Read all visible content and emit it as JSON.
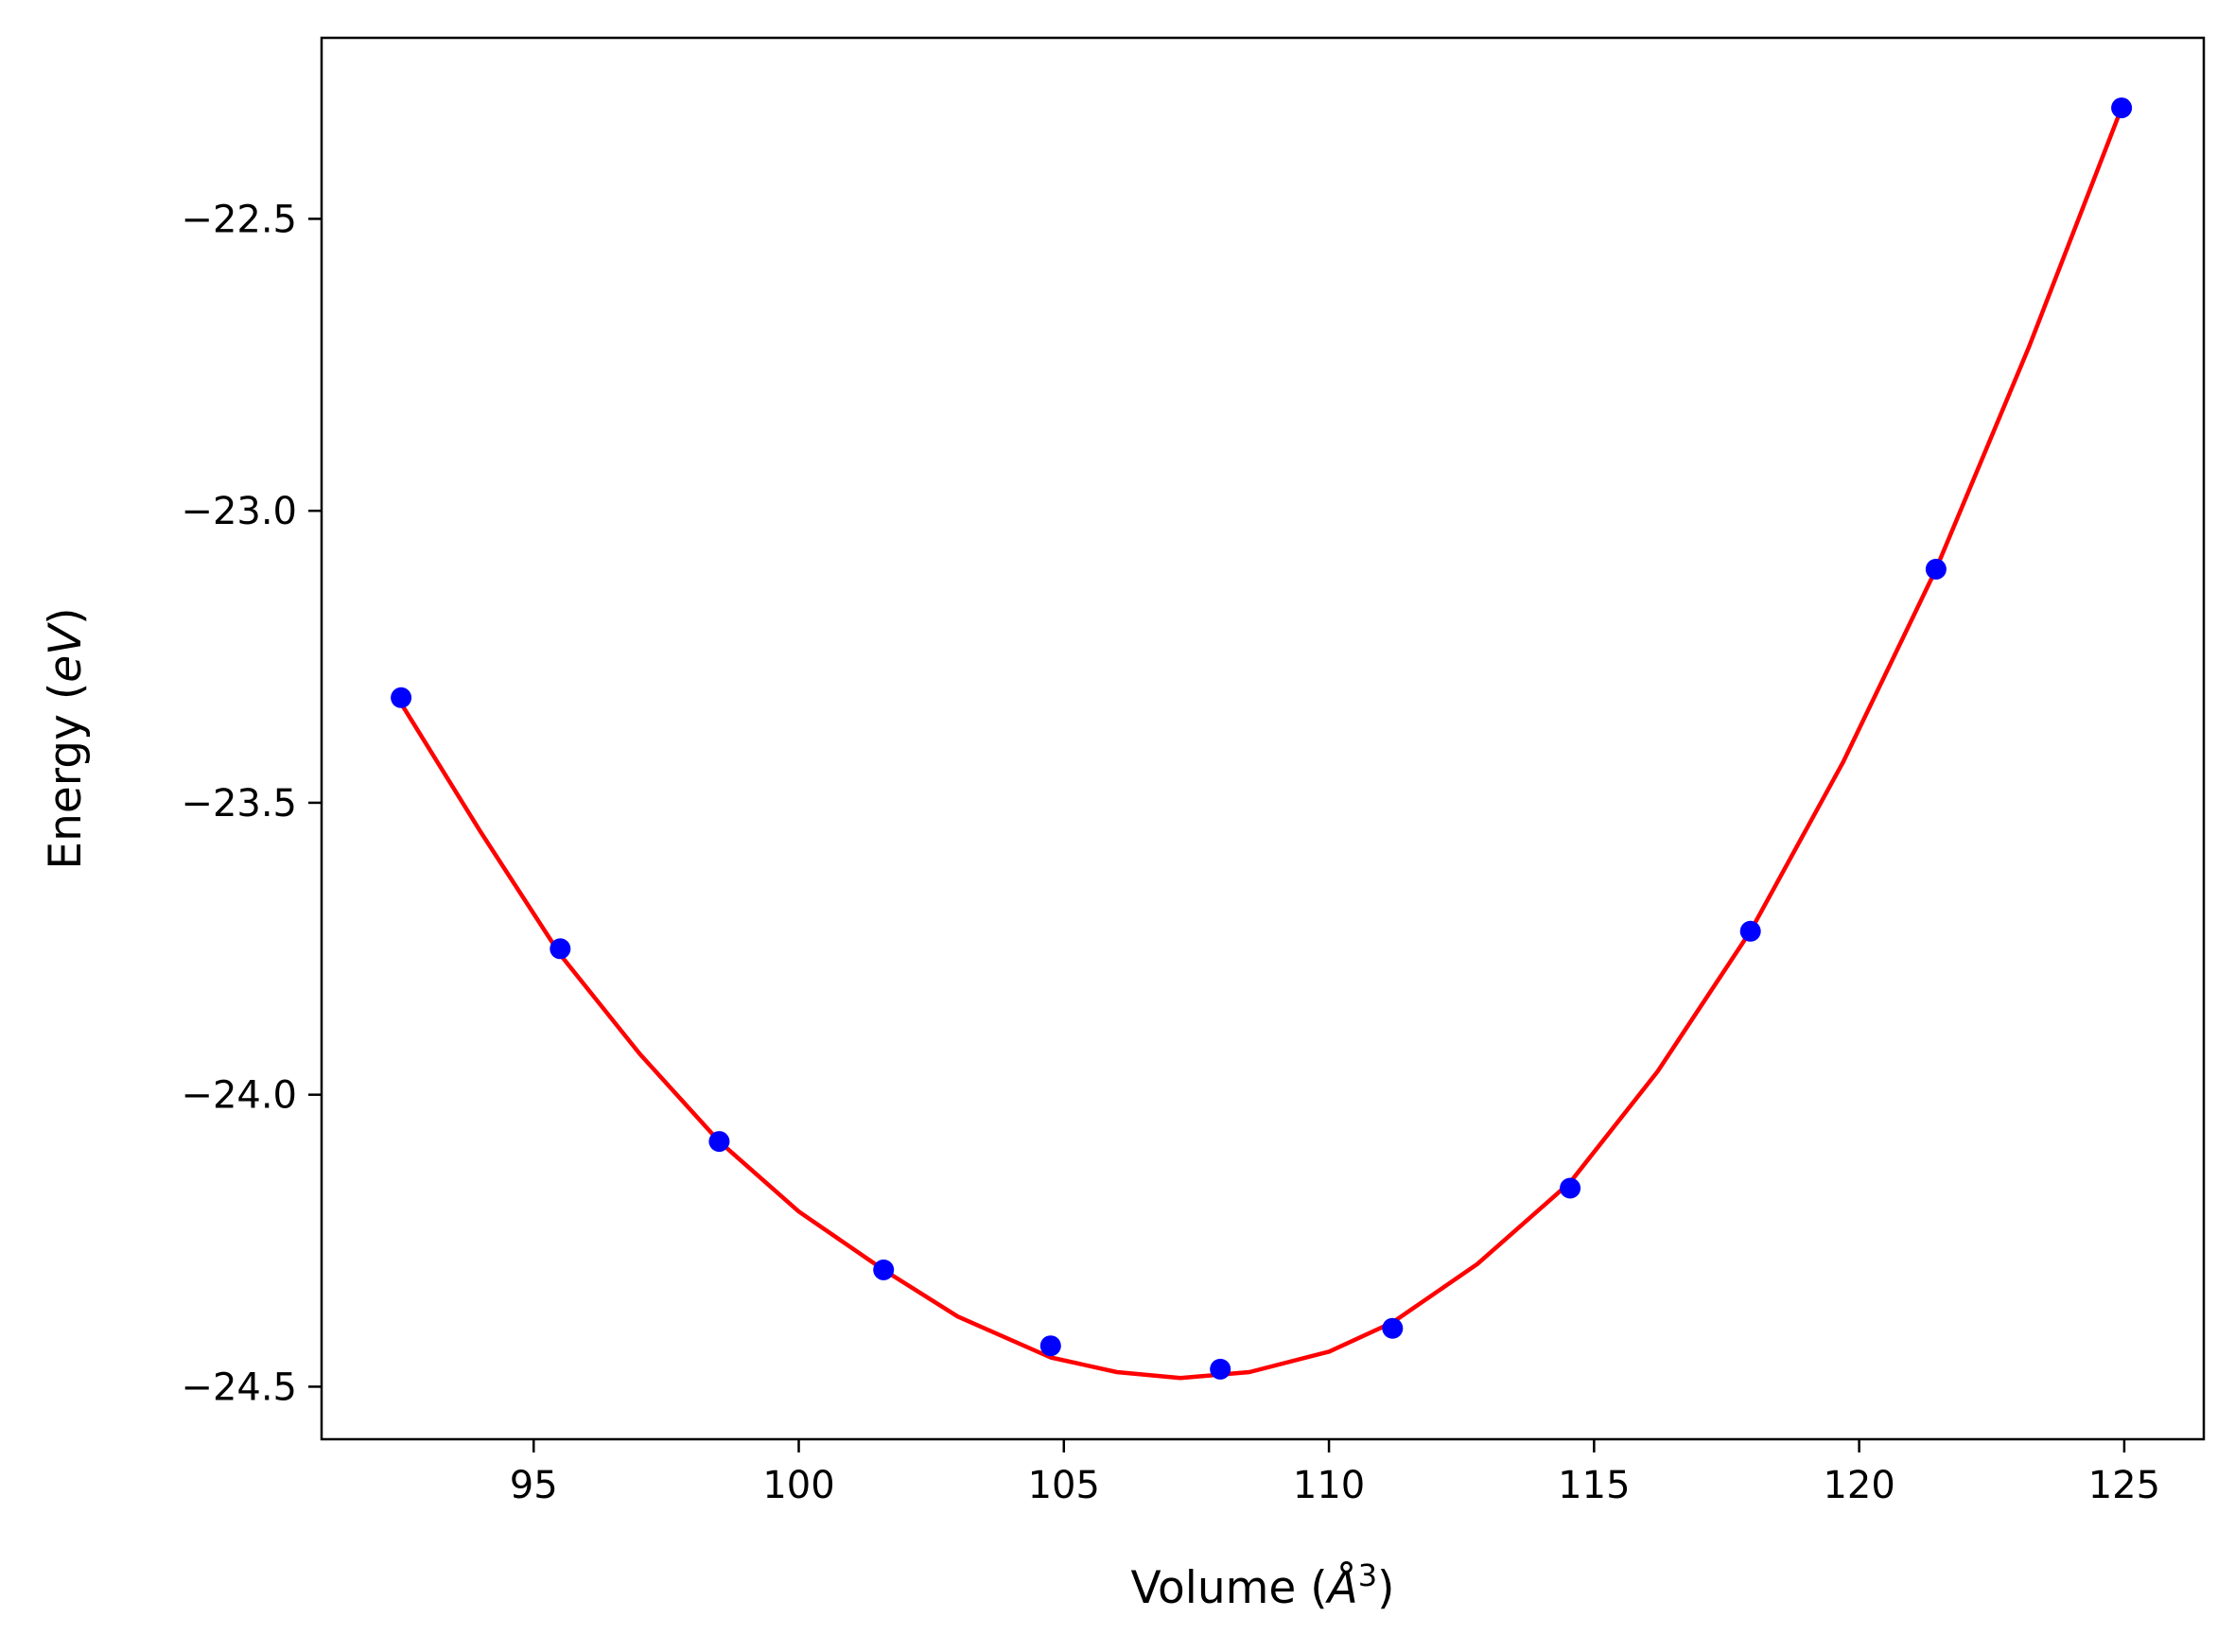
{
  "chart_data": {
    "type": "scatter",
    "title": "",
    "xlabel": {
      "prefix": "Volume (",
      "symbol": "Å",
      "superscript": "3",
      "suffix": ")"
    },
    "ylabel": {
      "prefix": "Energy (",
      "unit": "eV",
      "suffix": ")"
    },
    "xlim": [
      91,
      126.5
    ],
    "ylim": [
      -24.59,
      -22.19
    ],
    "x_ticks": [
      95,
      100,
      105,
      110,
      115,
      120,
      125
    ],
    "y_ticks": [
      -24.5,
      -24.0,
      -23.5,
      -23.0,
      -22.5
    ],
    "y_tick_labels": [
      "−24.5",
      "−24.0",
      "−23.5",
      "−23.0",
      "−22.5"
    ],
    "grid": false,
    "legend": "none",
    "series": [
      {
        "kind": "points",
        "color": "#0000ff",
        "x": [
          92.5,
          95.5,
          98.5,
          101.6,
          104.75,
          107.95,
          111.2,
          114.55,
          117.95,
          121.45,
          124.95
        ],
        "y": [
          -23.32,
          -23.75,
          -24.08,
          -24.3,
          -24.43,
          -24.47,
          -24.4,
          -24.16,
          -23.72,
          -23.1,
          -22.31
        ]
      },
      {
        "kind": "fit-line",
        "color": "#ff0000",
        "x": [
          92.5,
          94.0,
          95.5,
          97.0,
          98.5,
          100.0,
          101.6,
          103.0,
          104.75,
          106.0,
          107.2,
          108.5,
          110.0,
          111.2,
          112.8,
          114.55,
          116.2,
          117.95,
          119.7,
          121.45,
          123.2,
          124.95
        ],
        "y": [
          -23.33,
          -23.55,
          -23.76,
          -23.93,
          -24.08,
          -24.2,
          -24.3,
          -24.38,
          -24.45,
          -24.475,
          -24.485,
          -24.475,
          -24.44,
          -24.39,
          -24.29,
          -24.15,
          -23.96,
          -23.72,
          -23.43,
          -23.1,
          -22.72,
          -22.31
        ]
      }
    ]
  }
}
